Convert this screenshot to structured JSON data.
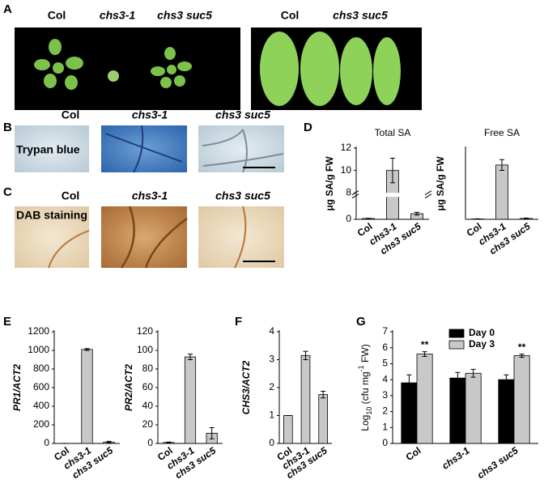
{
  "panel_labels": [
    "A",
    "B",
    "C",
    "D",
    "E",
    "F",
    "G"
  ],
  "photo_a_left": [
    "Col",
    "chs3-1",
    "chs3 suc5"
  ],
  "photo_a_right": [
    "Col",
    "chs3 suc5"
  ],
  "photo_b": {
    "stain": "Trypan blue",
    "labels": [
      "Col",
      "chs3-1",
      "chs3 suc5"
    ]
  },
  "photo_c": {
    "stain": "DAB staining",
    "labels": [
      "Col",
      "chs3-1",
      "chs3 suc5"
    ]
  },
  "chart_data": [
    {
      "type": "bar",
      "title": "Total SA",
      "ylabel": "μg SA/g FW",
      "categories": [
        "Col",
        "chs3-1",
        "chs3 suc5"
      ],
      "values": [
        0.07,
        10,
        0.5
      ],
      "errors": [
        0.02,
        1.1,
        0.12
      ],
      "color": "#c8c8c8",
      "ylim": [
        0,
        12
      ],
      "ybreak": [
        2,
        8
      ],
      "yticks": [
        0,
        8,
        10,
        12
      ]
    },
    {
      "type": "bar",
      "title": "Free SA",
      "ylabel": "μg SA/g FW",
      "categories": [
        "Col",
        "chs3-1",
        "chs3 suc5"
      ],
      "values": [
        0.02,
        3.05,
        0.05
      ],
      "errors": [
        0.01,
        0.3,
        0.02
      ],
      "color": "#c8c8c8",
      "ylim": [
        0,
        4
      ]
    },
    {
      "type": "bar",
      "ylabel": "PR1/ACT2",
      "categories": [
        "Col",
        "chs3-1",
        "chs3 suc5"
      ],
      "values": [
        1,
        1010,
        15
      ],
      "errors": [
        0.5,
        10,
        8
      ],
      "color": "#c8c8c8",
      "ylim": [
        0,
        1200
      ],
      "yticks": [
        0,
        200,
        400,
        600,
        800,
        1000,
        1200
      ]
    },
    {
      "type": "bar",
      "ylabel": "PR2/ACT2",
      "categories": [
        "Col",
        "chs3-1",
        "chs3 suc5"
      ],
      "values": [
        1,
        93,
        11
      ],
      "errors": [
        0.5,
        3,
        6
      ],
      "color": "#c8c8c8",
      "ylim": [
        0,
        120
      ],
      "yticks": [
        0,
        20,
        40,
        60,
        80,
        100,
        120
      ]
    },
    {
      "type": "bar",
      "ylabel": "CHS3/ACT2",
      "categories": [
        "Col",
        "chs3-1",
        "chs3 suc5"
      ],
      "values": [
        1,
        3.15,
        1.75
      ],
      "errors": [
        0,
        0.15,
        0.12
      ],
      "color": "#c8c8c8",
      "ylim": [
        0,
        4
      ],
      "yticks": [
        0,
        1,
        2,
        3,
        4
      ]
    },
    {
      "type": "grouped-bar",
      "ylabel_parts": [
        "Log",
        "10",
        " (cfu mg",
        "-1",
        " FW)"
      ],
      "categories": [
        "Col",
        "chs3-1",
        "chs3 suc5"
      ],
      "series": [
        {
          "name": "Day 0",
          "color": "#000000",
          "values": [
            3.8,
            4.1,
            4.0
          ],
          "errors": [
            0.5,
            0.35,
            0.3
          ]
        },
        {
          "name": "Day 3",
          "color": "#c8c8c8",
          "values": [
            5.6,
            4.4,
            5.5
          ],
          "errors": [
            0.15,
            0.25,
            0.1
          ]
        }
      ],
      "ylim": [
        0,
        7
      ],
      "yticks": [
        0,
        1,
        2,
        3,
        4,
        5,
        6,
        7
      ],
      "legend": "top-right",
      "annotations": [
        "**",
        "**"
      ]
    }
  ]
}
